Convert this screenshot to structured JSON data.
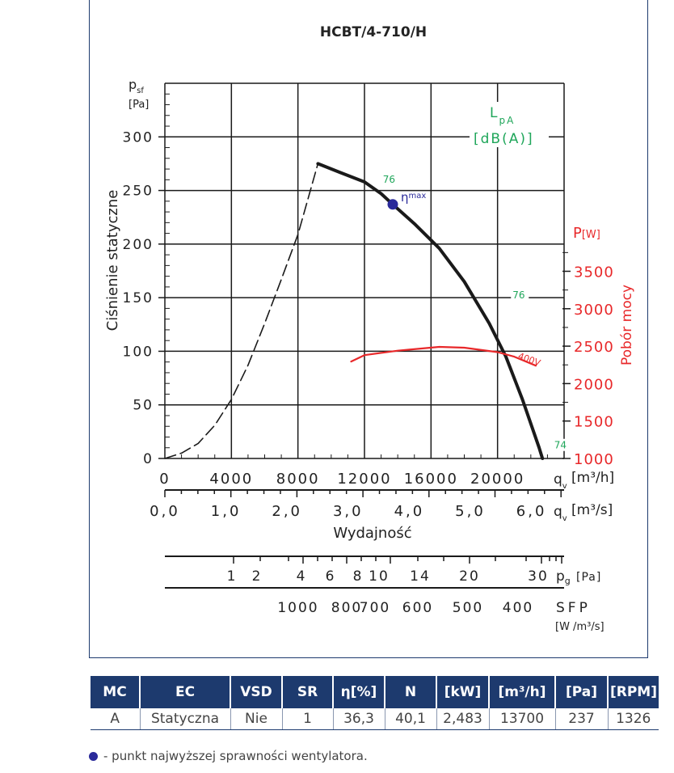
{
  "chart_data": {
    "type": "line",
    "title": "HCBT/4-710/H",
    "y_left": {
      "label": "Ciśnienie statyczne",
      "symbol": "p",
      "symbol_sub": "sf",
      "unit": "[Pa]",
      "ticks": [
        "0",
        "50",
        "100",
        "150",
        "200",
        "250",
        "300"
      ],
      "range": [
        0,
        350
      ]
    },
    "y_right": {
      "label": "Pobór mocy",
      "symbol": "P",
      "unit": "[W]",
      "ticks": [
        "1000",
        "1500",
        "2000",
        "2500",
        "3000",
        "3500"
      ],
      "range": [
        1000,
        5000
      ]
    },
    "x_main": {
      "label": "Wydajność",
      "symbol": "q",
      "symbol_sub": "v",
      "unit_m3h": "[m³/h]",
      "unit_m3s": "[m³/s]",
      "ticks_m3h": [
        "0",
        "4000",
        "8000",
        "12000",
        "16000",
        "20000"
      ],
      "ticks_m3s": [
        "0,0",
        "1,0",
        "2,0",
        "3,0",
        "4,0",
        "5,0",
        "6,0"
      ],
      "range": [
        0,
        24000
      ]
    },
    "pressure_scale": {
      "symbol": "p",
      "symbol_sub": "g",
      "unit": "[Pa]",
      "labels": [
        "1",
        "2",
        "4",
        "6",
        "8",
        "10",
        "14",
        "20",
        "30"
      ]
    },
    "sfp_scale": {
      "label": "SFP",
      "unit": "[W /m³/s]",
      "labels": [
        "1000",
        "800",
        "700",
        "600",
        "500",
        "400"
      ]
    },
    "series": [
      {
        "name": "",
        "axis": "left",
        "color": "#1a1a1a",
        "style": "solid",
        "points": [
          [
            9200,
            275
          ],
          [
            10500,
            267
          ],
          [
            12000,
            258
          ],
          [
            13000,
            247
          ],
          [
            13700,
            237
          ],
          [
            15000,
            219
          ],
          [
            16500,
            196
          ],
          [
            18000,
            165
          ],
          [
            19500,
            126
          ],
          [
            20500,
            95
          ],
          [
            21500,
            55
          ],
          [
            22500,
            10
          ],
          [
            22700,
            0
          ]
        ]
      },
      {
        "name": "",
        "axis": "left",
        "color": "#1a1a1a",
        "style": "dashed",
        "points": [
          [
            0,
            0
          ],
          [
            1000,
            5
          ],
          [
            2000,
            14
          ],
          [
            3000,
            31
          ],
          [
            4000,
            55
          ],
          [
            5000,
            87
          ],
          [
            6000,
            126
          ],
          [
            7000,
            167
          ],
          [
            8000,
            209
          ],
          [
            9200,
            275
          ]
        ]
      },
      {
        "name": "400V",
        "axis": "right",
        "color": "#e8282a",
        "style": "solid",
        "points": [
          [
            11200,
            2295
          ],
          [
            12000,
            2380
          ],
          [
            14000,
            2440
          ],
          [
            16500,
            2490
          ],
          [
            18000,
            2480
          ],
          [
            20000,
            2420
          ],
          [
            21000,
            2360
          ],
          [
            22300,
            2240
          ]
        ]
      }
    ],
    "lpa": {
      "label": "L",
      "label_sub": "pA",
      "unit": "[dB(A)]",
      "color": "#1fa65a",
      "marks": [
        {
          "value": "76",
          "q": 13200,
          "p": 258
        },
        {
          "value": "76",
          "q": 21000,
          "p": 150
        },
        {
          "value": "74",
          "q": 23500,
          "p": 10
        }
      ]
    },
    "eta_max": {
      "label": "η",
      "label_sub": "max",
      "q": 13700,
      "p": 237,
      "color": "#2a2a9a"
    },
    "grid": true
  },
  "table": {
    "headers": [
      "MC",
      "EC",
      "VSD",
      "SR",
      "η[%]",
      "N",
      "[kW]",
      "[m³/h]",
      "[Pa]",
      "[RPM]"
    ],
    "row": [
      "A",
      "Statyczna",
      "Nie",
      "1",
      "36,3",
      "40,1",
      "2,483",
      "13700",
      "237",
      "1326"
    ]
  },
  "footnote": "- punkt najwyższej sprawności wentylatora."
}
